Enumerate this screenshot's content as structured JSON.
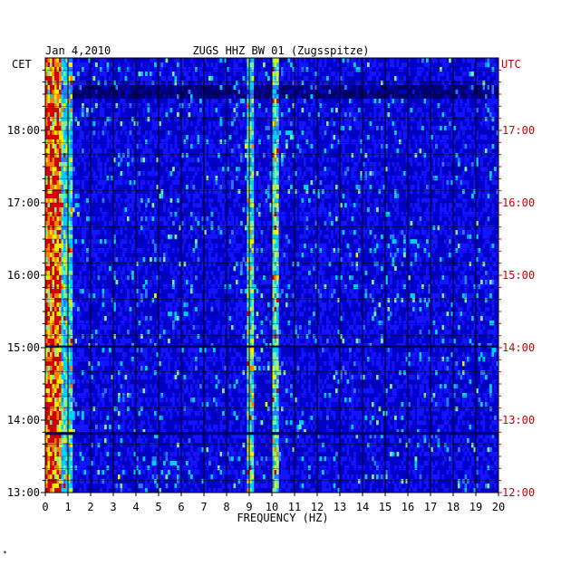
{
  "chart_data": {
    "type": "heatmap",
    "title": "ZUGS HHZ BW 01 (Zugsspitze)",
    "date": "Jan 4,2010",
    "left_zone": "CET",
    "right_zone": "UTC",
    "xlabel": "FREQUENCY (HZ)",
    "xlim": [
      0,
      20
    ],
    "x_ticks": [
      "0",
      "1",
      "2",
      "3",
      "4",
      "5",
      "6",
      "7",
      "8",
      "9",
      "10",
      "11",
      "12",
      "13",
      "14",
      "15",
      "16",
      "17",
      "18",
      "19",
      "20"
    ],
    "left_time_ticks": [
      "13:00",
      "14:00",
      "15:00",
      "16:00",
      "17:00",
      "18:00"
    ],
    "right_time_ticks": [
      "12:00",
      "13:00",
      "14:00",
      "15:00",
      "16:00",
      "17:00"
    ],
    "ylim_cet": [
      "13:00",
      "19:00"
    ],
    "colormap": [
      "#00006e",
      "#0000c8",
      "#1414ff",
      "#2a7cff",
      "#00d2ff",
      "#7cf0a0",
      "#f0f000",
      "#ff8000",
      "#d20000"
    ],
    "grid": true
  },
  "corner_mark": "*"
}
